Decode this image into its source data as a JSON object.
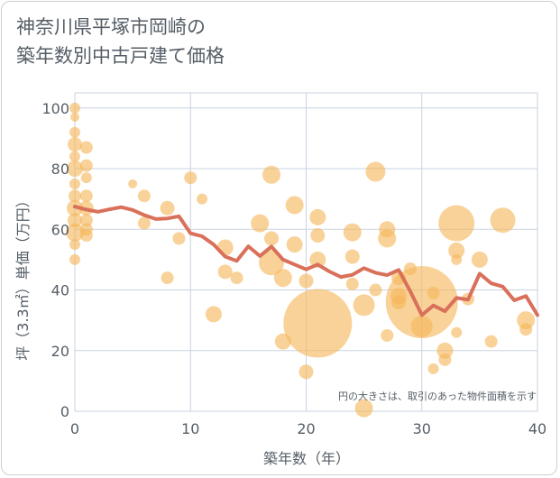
{
  "title": {
    "line1": "神奈川県平塚市岡崎の",
    "line2": "築年数別中古戸建て価格"
  },
  "colors": {
    "bubble": "#f5b75a",
    "line": "#d9705a",
    "grid": "#c9d3e0",
    "text": "#555e66"
  },
  "chart_data": {
    "type": "scatter",
    "title": "神奈川県平塚市岡崎の築年数別中古戸建て価格",
    "xlabel": "築年数（年）",
    "ylabel": "坪（3.3㎡）単価（万円）",
    "xlim": [
      0,
      40
    ],
    "ylim": [
      0,
      105
    ],
    "xticks": [
      0,
      10,
      20,
      30,
      40
    ],
    "yticks": [
      0,
      20,
      40,
      60,
      80,
      100
    ],
    "grid": true,
    "note": "円の大きさは、取引のあった物件面積を示す",
    "bubbles": [
      {
        "x": 0,
        "y": 100,
        "r": 6
      },
      {
        "x": 0,
        "y": 97,
        "r": 5
      },
      {
        "x": 0,
        "y": 92,
        "r": 6
      },
      {
        "x": 0,
        "y": 88,
        "r": 8
      },
      {
        "x": 0,
        "y": 84,
        "r": 6
      },
      {
        "x": 0,
        "y": 80,
        "r": 9
      },
      {
        "x": 0,
        "y": 75,
        "r": 6
      },
      {
        "x": 0,
        "y": 71,
        "r": 7
      },
      {
        "x": 0,
        "y": 67,
        "r": 9
      },
      {
        "x": 0,
        "y": 63,
        "r": 8
      },
      {
        "x": 0,
        "y": 59,
        "r": 10
      },
      {
        "x": 0,
        "y": 55,
        "r": 6
      },
      {
        "x": 0,
        "y": 50,
        "r": 6
      },
      {
        "x": 1,
        "y": 87,
        "r": 7
      },
      {
        "x": 1,
        "y": 81,
        "r": 7
      },
      {
        "x": 1,
        "y": 77,
        "r": 6
      },
      {
        "x": 1,
        "y": 71,
        "r": 7
      },
      {
        "x": 1,
        "y": 67,
        "r": 8
      },
      {
        "x": 1,
        "y": 63,
        "r": 7
      },
      {
        "x": 1,
        "y": 60,
        "r": 7
      },
      {
        "x": 1,
        "y": 58,
        "r": 7
      },
      {
        "x": 5,
        "y": 75,
        "r": 5
      },
      {
        "x": 6,
        "y": 71,
        "r": 7
      },
      {
        "x": 6,
        "y": 62,
        "r": 7
      },
      {
        "x": 8,
        "y": 67,
        "r": 8
      },
      {
        "x": 8,
        "y": 44,
        "r": 7
      },
      {
        "x": 9,
        "y": 57,
        "r": 7
      },
      {
        "x": 10,
        "y": 77,
        "r": 7
      },
      {
        "x": 11,
        "y": 70,
        "r": 6
      },
      {
        "x": 12,
        "y": 32,
        "r": 9
      },
      {
        "x": 13,
        "y": 54,
        "r": 9
      },
      {
        "x": 13,
        "y": 46,
        "r": 8
      },
      {
        "x": 14,
        "y": 44,
        "r": 7
      },
      {
        "x": 16,
        "y": 62,
        "r": 10
      },
      {
        "x": 17,
        "y": 78,
        "r": 10
      },
      {
        "x": 17,
        "y": 57,
        "r": 8
      },
      {
        "x": 17,
        "y": 49,
        "r": 14
      },
      {
        "x": 18,
        "y": 44,
        "r": 10
      },
      {
        "x": 18,
        "y": 23,
        "r": 9
      },
      {
        "x": 19,
        "y": 68,
        "r": 10
      },
      {
        "x": 19,
        "y": 55,
        "r": 9
      },
      {
        "x": 20,
        "y": 43,
        "r": 8
      },
      {
        "x": 20,
        "y": 13,
        "r": 8
      },
      {
        "x": 21,
        "y": 64,
        "r": 9
      },
      {
        "x": 21,
        "y": 58,
        "r": 8
      },
      {
        "x": 21,
        "y": 50,
        "r": 9
      },
      {
        "x": 21,
        "y": 29,
        "r": 38
      },
      {
        "x": 24,
        "y": 59,
        "r": 10
      },
      {
        "x": 24,
        "y": 51,
        "r": 8
      },
      {
        "x": 24,
        "y": 42,
        "r": 7
      },
      {
        "x": 25,
        "y": 35,
        "r": 12
      },
      {
        "x": 25,
        "y": 1,
        "r": 10
      },
      {
        "x": 26,
        "y": 79,
        "r": 11
      },
      {
        "x": 26,
        "y": 40,
        "r": 7
      },
      {
        "x": 27,
        "y": 60,
        "r": 9
      },
      {
        "x": 27,
        "y": 57,
        "r": 10
      },
      {
        "x": 27,
        "y": 25,
        "r": 7
      },
      {
        "x": 28,
        "y": 44,
        "r": 8
      },
      {
        "x": 28,
        "y": 38,
        "r": 9
      },
      {
        "x": 28,
        "y": 36,
        "r": 8
      },
      {
        "x": 29,
        "y": 47,
        "r": 7
      },
      {
        "x": 30,
        "y": 36,
        "r": 40
      },
      {
        "x": 30,
        "y": 28,
        "r": 12
      },
      {
        "x": 31,
        "y": 39,
        "r": 7
      },
      {
        "x": 31,
        "y": 14,
        "r": 6
      },
      {
        "x": 32,
        "y": 20,
        "r": 9
      },
      {
        "x": 32,
        "y": 17,
        "r": 7
      },
      {
        "x": 33,
        "y": 62,
        "r": 20
      },
      {
        "x": 33,
        "y": 53,
        "r": 9
      },
      {
        "x": 33,
        "y": 50,
        "r": 6
      },
      {
        "x": 33,
        "y": 26,
        "r": 6
      },
      {
        "x": 35,
        "y": 50,
        "r": 9
      },
      {
        "x": 36,
        "y": 23,
        "r": 7
      },
      {
        "x": 37,
        "y": 63,
        "r": 14
      },
      {
        "x": 39,
        "y": 30,
        "r": 10
      },
      {
        "x": 39,
        "y": 27,
        "r": 7
      },
      {
        "x": 34,
        "y": 37,
        "r": 7
      }
    ],
    "series": [
      {
        "x": [
          0,
          1,
          2,
          3,
          4,
          5,
          6,
          7,
          8,
          9,
          10,
          11,
          12,
          13,
          14,
          15,
          16,
          17,
          18,
          19,
          20,
          21,
          22,
          23,
          24,
          25,
          26,
          27,
          28,
          29,
          30,
          31,
          32,
          33,
          34,
          35,
          36,
          37,
          38,
          39,
          40
        ],
        "y": [
          67.5,
          66.5,
          65.8,
          66.6,
          67.3,
          66.4,
          64.7,
          63.4,
          63.6,
          64.3,
          58.7,
          57.7,
          55.0,
          51.0,
          49.6,
          54.4,
          51.2,
          54.3,
          50.0,
          48.4,
          46.8,
          48.4,
          46.1,
          44.3,
          45.0,
          47.2,
          45.7,
          44.9,
          46.6,
          39.6,
          31.7,
          34.9,
          33.0,
          37.4,
          36.8,
          45.4,
          42.2,
          41.1,
          36.6,
          38.0,
          31.7
        ]
      }
    ]
  }
}
